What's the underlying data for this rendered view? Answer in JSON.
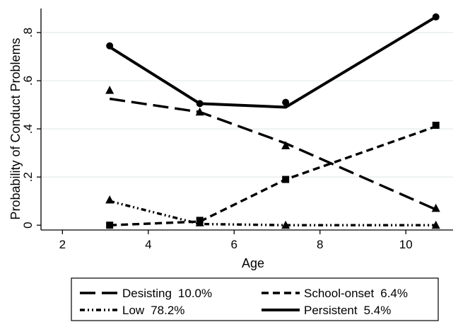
{
  "chart_data": {
    "type": "line",
    "xlabel": "Age",
    "ylabel": "Probability of Conduct Problems",
    "xlim": [
      1.5,
      11.1
    ],
    "ylim": [
      -0.02,
      0.9
    ],
    "xticks": [
      2,
      4,
      6,
      8,
      10
    ],
    "xtick_labels": [
      "2",
      "4",
      "6",
      "8",
      "10"
    ],
    "yticks": [
      0,
      0.2,
      0.4,
      0.6,
      0.8
    ],
    "ytick_labels": [
      "0",
      ".2",
      ".4",
      ".6",
      ".8"
    ],
    "grid": "horizontal",
    "legend_position": "bottom",
    "series": [
      {
        "name": "Desisting",
        "share": "10.0%",
        "line_style": "long-dash",
        "marker": "triangle",
        "points": [
          {
            "x": 3.1,
            "y": 0.56
          },
          {
            "x": 5.2,
            "y": 0.47
          },
          {
            "x": 7.2,
            "y": 0.33
          },
          {
            "x": 10.7,
            "y": 0.07
          }
        ],
        "fitted": [
          [
            3.1,
            0.525
          ],
          [
            5.2,
            0.47
          ],
          [
            7.2,
            0.34
          ],
          [
            10.7,
            0.065
          ]
        ]
      },
      {
        "name": "School-onset",
        "share": "6.4%",
        "line_style": "short-dash",
        "marker": "square",
        "points": [
          {
            "x": 3.1,
            "y": 0.0
          },
          {
            "x": 5.2,
            "y": 0.02
          },
          {
            "x": 7.2,
            "y": 0.19
          },
          {
            "x": 10.7,
            "y": 0.415
          }
        ],
        "fitted": [
          [
            3.1,
            0.0
          ],
          [
            5.2,
            0.015
          ],
          [
            7.2,
            0.19
          ],
          [
            10.7,
            0.41
          ]
        ]
      },
      {
        "name": "Low",
        "share": "78.2%",
        "line_style": "dash-dot-dot",
        "marker": "triangle",
        "points": [
          {
            "x": 3.1,
            "y": 0.105
          },
          {
            "x": 5.2,
            "y": 0.01
          },
          {
            "x": 7.2,
            "y": 0.0
          },
          {
            "x": 10.7,
            "y": 0.0
          }
        ],
        "fitted": [
          [
            3.1,
            0.1
          ],
          [
            5.2,
            0.005
          ],
          [
            7.2,
            0.0
          ],
          [
            10.7,
            0.0
          ]
        ]
      },
      {
        "name": "Persistent",
        "share": "5.4%",
        "line_style": "solid",
        "marker": "circle",
        "points": [
          {
            "x": 3.1,
            "y": 0.745
          },
          {
            "x": 5.2,
            "y": 0.505
          },
          {
            "x": 7.2,
            "y": 0.51
          },
          {
            "x": 10.7,
            "y": 0.865
          }
        ],
        "fitted": [
          [
            3.1,
            0.74
          ],
          [
            5.2,
            0.505
          ],
          [
            7.2,
            0.49
          ],
          [
            10.7,
            0.865
          ]
        ]
      }
    ]
  }
}
